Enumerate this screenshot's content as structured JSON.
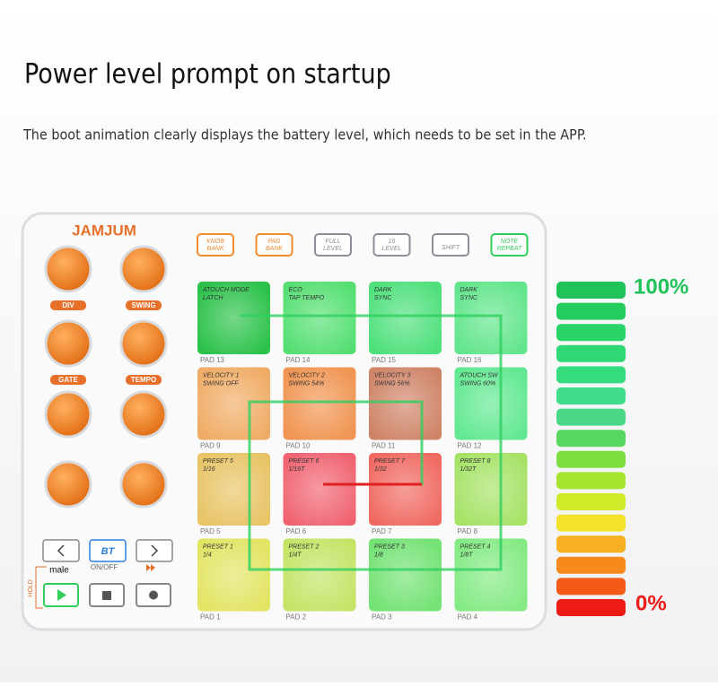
{
  "header": {
    "title": "Power level prompt on startup",
    "subtitle": "The boot animation clearly displays the battery level, which needs to be set in the APP."
  },
  "device": {
    "brand": "JAMJUM",
    "top_buttons": [
      {
        "lines": [
          "KNOB",
          "BANK"
        ],
        "color": "#f08a30"
      },
      {
        "lines": [
          "PAD",
          "BANK"
        ],
        "color": "#f08a30"
      },
      {
        "lines": [
          "FULL",
          "LEVEL"
        ],
        "color": "#8a8f98"
      },
      {
        "lines": [
          "16",
          "LEVEL"
        ],
        "color": "#8a8f98"
      },
      {
        "lines": [
          "SHIFT"
        ],
        "color": "#8a8f98"
      },
      {
        "lines": [
          "NOTE",
          "REPEAT"
        ],
        "color": "#2fcf5a"
      }
    ],
    "knob_labels": [
      "DIV",
      "SWING",
      "GATE",
      "TEMPO"
    ],
    "pads": [
      {
        "lines": [
          "ATOUCH MODE",
          "LATCH"
        ],
        "name": "PAD 13",
        "color": "#2cc24a"
      },
      {
        "lines": [
          "ECO",
          "TAP TEMPO"
        ],
        "name": "PAD 14",
        "color": "#55df72"
      },
      {
        "lines": [
          "DARK",
          "SYNC"
        ],
        "name": "PAD 15",
        "color": "#4fe07c"
      },
      {
        "lines": [
          "DARK",
          "SYNC"
        ],
        "name": "PAD 16",
        "color": "#62e58c"
      },
      {
        "lines": [
          "VELOCITY 1",
          "SWING OFF"
        ],
        "name": "PAD 9",
        "color": "#f0ac66"
      },
      {
        "lines": [
          "VELOCITY 2",
          "SWING 54%"
        ],
        "name": "PAD 10",
        "color": "#f09552"
      },
      {
        "lines": [
          "VELOCITY 3",
          "SWING 56%"
        ],
        "name": "PAD 11",
        "color": "#cf8468"
      },
      {
        "lines": [
          "ATOUCH SW",
          "SWING 60%"
        ],
        "name": "PAD 12",
        "color": "#62e892"
      },
      {
        "lines": [
          "PRESET 5",
          "1/16"
        ],
        "name": "PAD 5",
        "color": "#e8c466"
      },
      {
        "lines": [
          "PRESET 6",
          "1/16T"
        ],
        "name": "PAD 6",
        "color": "#f06472"
      },
      {
        "lines": [
          "PRESET 7",
          "1/32"
        ],
        "name": "PAD 7",
        "color": "#f06a62"
      },
      {
        "lines": [
          "PRESET 8",
          "1/32T"
        ],
        "name": "PAD 8",
        "color": "#a6e266"
      },
      {
        "lines": [
          "PRESET 1",
          "1/4"
        ],
        "name": "PAD 1",
        "color": "#e2e464"
      },
      {
        "lines": [
          "PRESET 2",
          "1/4T"
        ],
        "name": "PAD 2",
        "color": "#c4e466"
      },
      {
        "lines": [
          "PRESET 3",
          "1/8"
        ],
        "name": "PAD 3",
        "color": "#74e274"
      },
      {
        "lines": [
          "PRESET 4",
          "1/8T"
        ],
        "name": "PAD 4",
        "color": "#84ea84"
      }
    ],
    "controls": {
      "bt": "BT",
      "bt_label": "ON/OFF",
      "male": "male",
      "hold": "HOLD"
    }
  },
  "battery": {
    "top": "100%",
    "bottom": "0%",
    "colors": [
      "#1fc35a",
      "#24cc5e",
      "#28d468",
      "#2ed872",
      "#35dc7e",
      "#3fdc8a",
      "#4ad888",
      "#58d860",
      "#7ede40",
      "#a6e430",
      "#d0ea2a",
      "#f2e22a",
      "#f6b020",
      "#f68a1c",
      "#f45a18",
      "#ee1a14"
    ]
  }
}
